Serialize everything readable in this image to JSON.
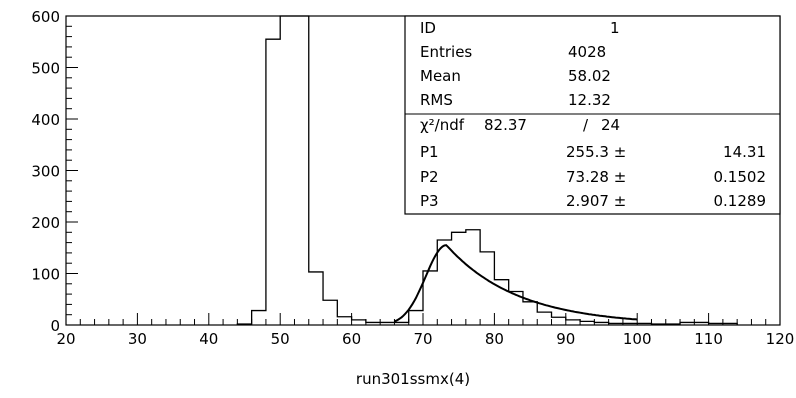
{
  "chart_data": {
    "type": "histogram",
    "xlabel": "run301ssmx(4)",
    "xlim": [
      20,
      120
    ],
    "ylim": [
      0,
      600
    ],
    "x_ticks": [
      "20",
      "30",
      "40",
      "50",
      "60",
      "70",
      "80",
      "90",
      "100",
      "110",
      "120"
    ],
    "y_ticks": [
      "0",
      "100",
      "200",
      "300",
      "400",
      "500",
      "600"
    ],
    "bin_width": 2,
    "bins_start": [
      44,
      46,
      48,
      50,
      52,
      54,
      56,
      58,
      60,
      62,
      64,
      66,
      68,
      70,
      72,
      74,
      76,
      78,
      80,
      82,
      84,
      86,
      88,
      90,
      92,
      94,
      96,
      98,
      100,
      102,
      104,
      106,
      108,
      110,
      112
    ],
    "counts": [
      2,
      28,
      555,
      620,
      620,
      103,
      48,
      16,
      10,
      5,
      5,
      5,
      28,
      105,
      165,
      180,
      185,
      142,
      88,
      65,
      45,
      25,
      15,
      10,
      7,
      5,
      3,
      3,
      3,
      2,
      2,
      5,
      5,
      3,
      3
    ],
    "fit": {
      "type": "gaussian",
      "x_range": [
        66,
        100
      ],
      "P1": 255.3,
      "P2": 73.28,
      "P3": 2.907,
      "tail_scale": 10.0
    },
    "stats": {
      "rows": [
        {
          "label": "ID",
          "value": "1",
          "error": ""
        },
        {
          "label": "Entries",
          "value": "4028",
          "error": ""
        },
        {
          "label": "Mean",
          "value": "58.02",
          "error": ""
        },
        {
          "label": "RMS",
          "value": "12.32",
          "error": ""
        }
      ],
      "fit_rows": [
        {
          "label": "χ²/ndf",
          "value": "82.37",
          "sep": "/",
          "ndf": "24"
        },
        {
          "label": "P1",
          "value": "255.3 ±",
          "error": "14.31"
        },
        {
          "label": "P2",
          "value": "73.28 ±",
          "error": "0.1502"
        },
        {
          "label": "P3",
          "value": "2.907 ±",
          "error": "0.1289"
        }
      ]
    }
  }
}
